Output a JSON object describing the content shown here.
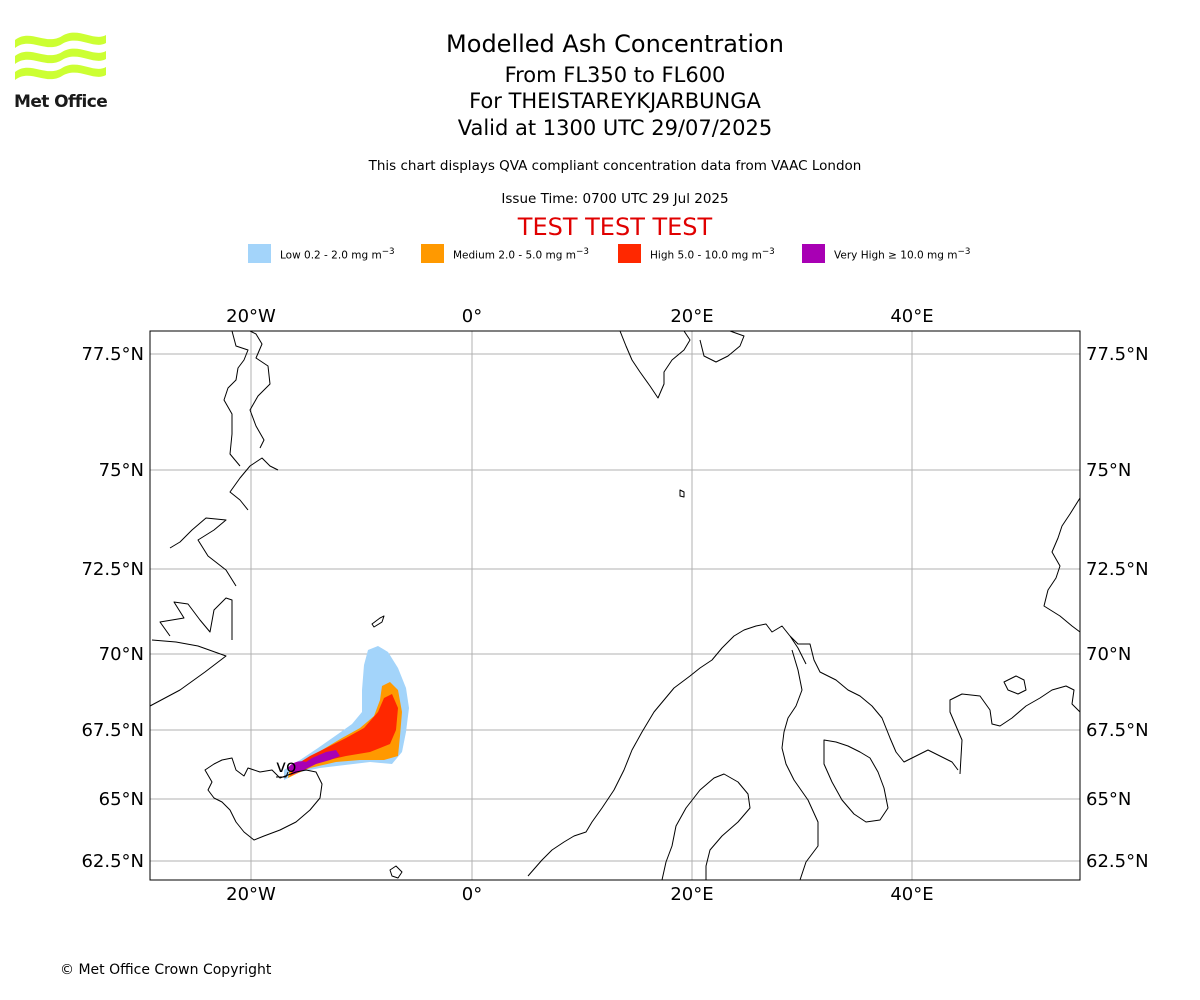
{
  "header": {
    "title": "Modelled Ash Concentration",
    "levels": "From FL350 to FL600",
    "volcano": "For THEISTAREYKJARBUNGA",
    "valid": "Valid at 1300 UTC 29/07/2025",
    "description": "This chart displays QVA compliant concentration data from VAAC London",
    "issue_time": "Issue Time: 0700 UTC 29 Jul 2025",
    "test_banner": "TEST TEST TEST"
  },
  "logo": {
    "text": "Met Office",
    "color": "#ccff33"
  },
  "legend": [
    {
      "label": "Low 0.2 - 2.0 mg m",
      "exp": "−3",
      "color": "#a3d4fa"
    },
    {
      "label": "Medium 2.0 - 5.0 mg m",
      "exp": "−3",
      "color": "#ff9900"
    },
    {
      "label": "High 5.0 - 10.0 mg m",
      "exp": "−3",
      "color": "#ff2800"
    },
    {
      "label": "Very High  ≥  10.0 mg m",
      "exp": "−3",
      "color": "#a800b4"
    }
  ],
  "map": {
    "lon_labels": [
      "20°W",
      "0°",
      "20°E",
      "40°E"
    ],
    "lat_labels_left": [
      "77.5°N",
      "75°N",
      "72.5°N",
      "70°N",
      "67.5°N",
      "65°N",
      "62.5°N"
    ],
    "lat_labels_right": [
      "77.5°N",
      "75°N",
      "72.5°N",
      "70°N",
      "67.5°N",
      "65°N",
      "62.5°N"
    ],
    "volcano_marker": "vo",
    "grid_color": "#b0b0b0"
  },
  "footer": {
    "copyright": "© Met Office Crown Copyright"
  }
}
